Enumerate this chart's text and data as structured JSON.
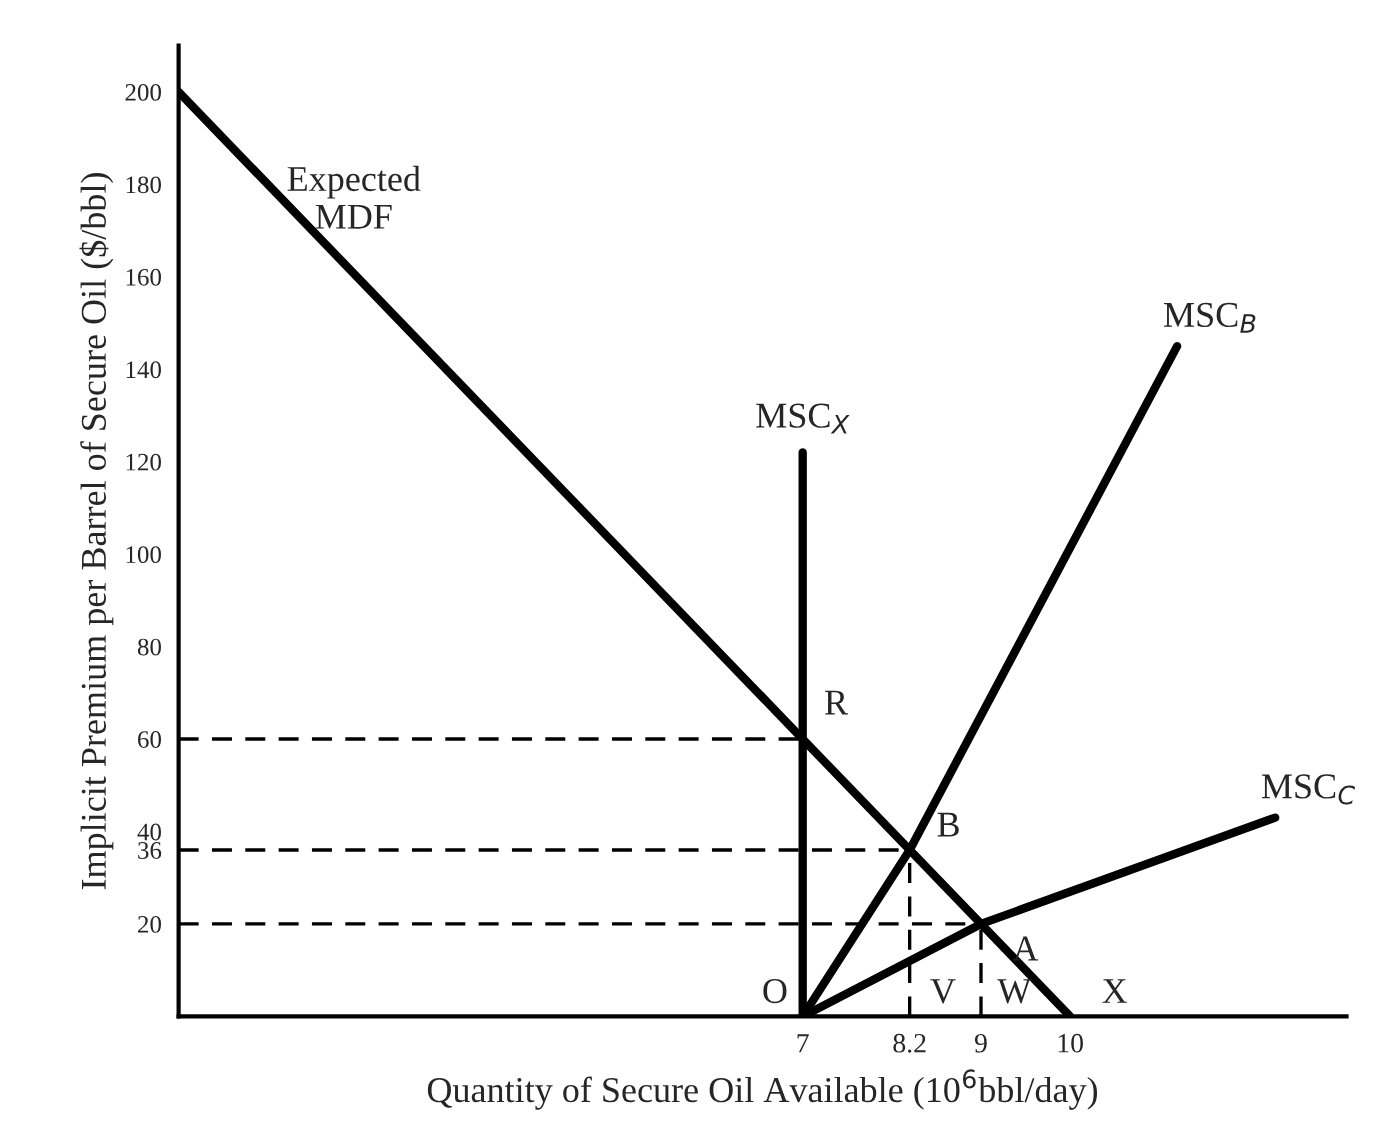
{
  "chart_data": {
    "type": "line",
    "xlabel": "Quantity of Secure Oil Available (10$^{6}$bbl/day)",
    "ylabel": "Implicit Premium per Barrel of Secure Oil ($/bbl)",
    "xlim": [
      0,
      13.1
    ],
    "ylim": [
      0,
      210
    ],
    "xticks": [
      7,
      8.2,
      9,
      10
    ],
    "yticks": [
      20,
      36,
      40,
      60,
      80,
      100,
      120,
      140,
      160,
      180,
      200
    ],
    "grid": false,
    "legend": false,
    "series": [
      {
        "x": [
          0,
          7,
          8.2,
          9,
          10
        ],
        "values": [
          200,
          60,
          36,
          20,
          0
        ],
        "color": "#000000",
        "line_style": "solid"
      },
      {
        "x": [
          7,
          7
        ],
        "values": [
          0,
          122
        ],
        "color": "#000000",
        "line_style": "solid"
      },
      {
        "x": [
          7,
          8.2,
          11.2
        ],
        "values": [
          0,
          36,
          145
        ],
        "color": "#000000",
        "line_style": "solid"
      },
      {
        "x": [
          7,
          9,
          12.3
        ],
        "values": [
          0,
          20,
          43
        ],
        "color": "#000000",
        "line_style": "solid"
      },
      {
        "x": [
          0,
          7
        ],
        "values": [
          60,
          60
        ],
        "color": "#000000",
        "line_style": "dashed"
      },
      {
        "x": [
          0,
          8.2
        ],
        "values": [
          36,
          36
        ],
        "color": "#000000",
        "line_style": "dashed"
      },
      {
        "x": [
          8.2,
          8.2
        ],
        "values": [
          0,
          36
        ],
        "color": "#000000",
        "line_style": "dashed"
      },
      {
        "x": [
          0,
          9
        ],
        "values": [
          20,
          20
        ],
        "color": "#000000",
        "line_style": "dashed"
      },
      {
        "x": [
          9,
          9
        ],
        "values": [
          0,
          20
        ],
        "color": "#000000",
        "line_style": "dashed"
      }
    ],
    "annotations": [
      "Expected\nMDF",
      {
        "text": "MSC$_{X}$",
        "x": 7,
        "y": 122
      },
      {
        "text": "MSC$_{B}$",
        "x": 11.2,
        "y": 145
      },
      {
        "text": "MSC$_{C}$",
        "x": 12.3,
        "y": 43
      },
      {
        "text": "R",
        "x": 7,
        "y": 60
      },
      {
        "text": "B",
        "x": 8.2,
        "y": 36
      },
      {
        "text": "A",
        "x": 9,
        "y": 20
      },
      {
        "text": "O",
        "x": 7,
        "y": 0
      },
      {
        "text": "V",
        "x": 8.2,
        "y": 0
      },
      {
        "text": "W",
        "x": 9,
        "y": 0
      },
      {
        "text": "X",
        "x": 10,
        "y": 0
      }
    ]
  }
}
